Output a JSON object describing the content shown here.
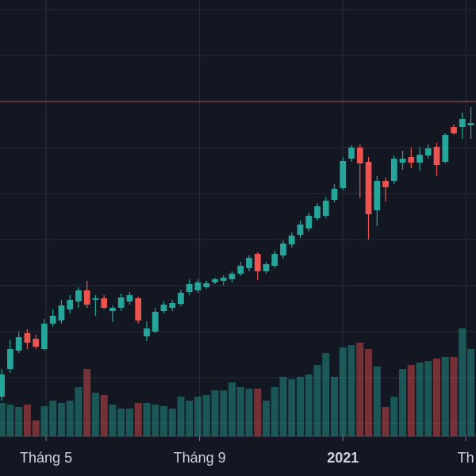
{
  "chart_data": {
    "type": "candlestick",
    "categories": [
      null,
      null,
      null,
      null,
      null,
      null,
      null,
      null,
      null,
      null,
      null,
      null,
      null,
      null,
      null,
      null,
      null,
      null,
      null,
      null,
      null,
      null,
      null,
      null,
      null,
      null,
      null,
      null,
      null,
      null,
      null,
      null,
      null,
      null,
      null,
      null,
      null,
      null,
      null,
      null,
      null,
      null,
      null,
      null,
      null,
      null,
      null,
      null,
      null,
      null,
      null,
      null,
      null,
      null,
      null,
      null
    ],
    "open": [
      100,
      135,
      158,
      180,
      173,
      160,
      192,
      196,
      210,
      220,
      234,
      222,
      224,
      208,
      212,
      220,
      224,
      176,
      182,
      208,
      212,
      217,
      232,
      234,
      238,
      244,
      246,
      248,
      255,
      262,
      280,
      258,
      265,
      278,
      292,
      304,
      312,
      325,
      328,
      348,
      363,
      400,
      414,
      396,
      335,
      372,
      372,
      395,
      402,
      395,
      404,
      415,
      396,
      440,
      440,
      442
    ],
    "high": [
      135,
      172,
      182,
      185,
      178,
      198,
      210,
      222,
      228,
      238,
      246,
      228,
      228,
      215,
      230,
      232,
      226,
      195,
      212,
      220,
      222,
      235,
      248,
      248,
      246,
      250,
      253,
      258,
      270,
      278,
      282,
      270,
      284,
      297,
      307,
      322,
      332,
      344,
      352,
      368,
      402,
      417,
      418,
      402,
      378,
      376,
      404,
      410,
      414,
      414,
      418,
      420,
      432,
      443,
      458,
      465
    ],
    "low": [
      95,
      130,
      155,
      160,
      160,
      158,
      188,
      192,
      205,
      212,
      212,
      202,
      210,
      194,
      208,
      216,
      192,
      170,
      180,
      205,
      208,
      214,
      228,
      231,
      236,
      242,
      240,
      244,
      252,
      258,
      247,
      255,
      262,
      274,
      288,
      300,
      308,
      322,
      325,
      345,
      360,
      396,
      350,
      298,
      315,
      346,
      368,
      386,
      388,
      385,
      400,
      378,
      394,
      430,
      425,
      425
    ],
    "close": [
      128,
      160,
      175,
      168,
      163,
      192,
      202,
      215,
      222,
      234,
      216,
      224,
      212,
      212,
      225,
      228,
      196,
      186,
      207,
      216,
      218,
      231,
      242,
      244,
      243,
      248,
      250,
      255,
      265,
      275,
      258,
      267,
      280,
      293,
      303,
      317,
      328,
      340,
      347,
      362,
      397,
      414,
      394,
      330,
      372,
      364,
      400,
      400,
      395,
      405,
      413,
      392,
      430,
      432,
      450,
      445
    ],
    "volume": [
      42,
      40,
      37,
      40,
      20,
      38,
      45,
      42,
      45,
      62,
      85,
      55,
      52,
      40,
      35,
      35,
      42,
      42,
      40,
      38,
      35,
      50,
      45,
      50,
      52,
      58,
      58,
      68,
      62,
      60,
      60,
      45,
      62,
      75,
      72,
      75,
      78,
      90,
      105,
      75,
      112,
      115,
      118,
      110,
      88,
      37,
      50,
      85,
      90,
      93,
      95,
      98,
      100,
      100,
      136,
      110
    ],
    "up_color": "#26a69a",
    "down_color": "#ef5350",
    "ylim": [
      50,
      600
    ],
    "volume_lim": [
      0,
      550
    ],
    "ygrid": [
      588,
      530,
      472,
      414,
      356,
      298,
      240,
      182,
      124,
      66
    ],
    "price_line": 472,
    "price_line_color": "#a95a5a",
    "xlim": [
      -0.2,
      55.6
    ],
    "xticks": [
      {
        "value": 5.2,
        "label": "Tháng 5"
      },
      {
        "value": 23.2,
        "label": "Tháng 9"
      },
      {
        "value": 40,
        "label": "2021"
      },
      {
        "value": 54.4,
        "label": "Th"
      }
    ],
    "grid": true
  }
}
